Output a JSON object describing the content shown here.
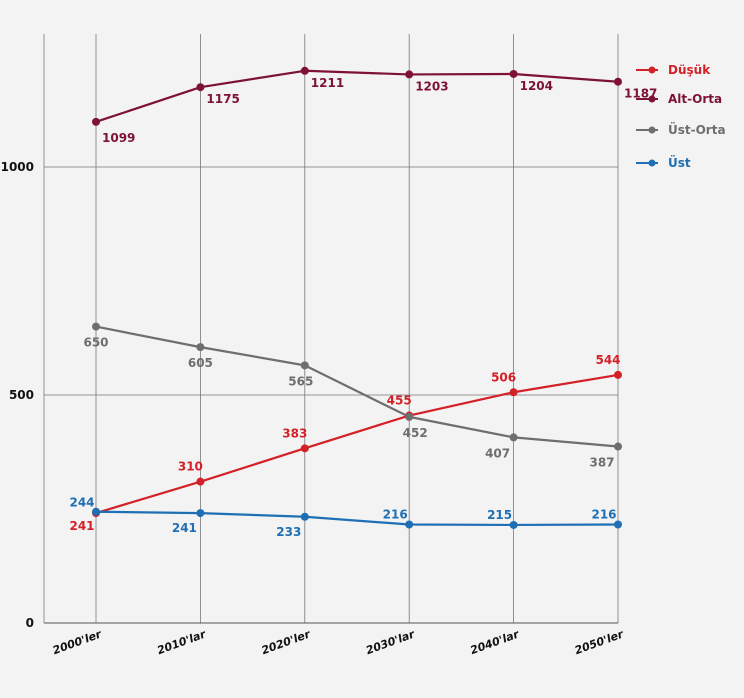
{
  "chart_data": {
    "type": "line",
    "categories": [
      "2000'ler",
      "2010'lar",
      "2020'ler",
      "2030'lar",
      "2040'lar",
      "2050'ler"
    ],
    "ylim": [
      0,
      1300
    ],
    "yticks": [
      0,
      500,
      1000
    ],
    "grid": true,
    "legend_position": "top-right",
    "series": [
      {
        "name": "Düşük",
        "color": "#d42027",
        "values": [
          241,
          310,
          383,
          455,
          506,
          544
        ]
      },
      {
        "name": "Alt-Orta",
        "color": "#7d1236",
        "values": [
          1099,
          1175,
          1211,
          1203,
          1204,
          1187
        ]
      },
      {
        "name": "Üst-Orta",
        "color": "#6e6e6e",
        "values": [
          650,
          605,
          565,
          452,
          407,
          387
        ]
      },
      {
        "name": "Üst",
        "color": "#1f6fb4",
        "values": [
          244,
          241,
          233,
          216,
          215,
          216
        ]
      }
    ]
  }
}
